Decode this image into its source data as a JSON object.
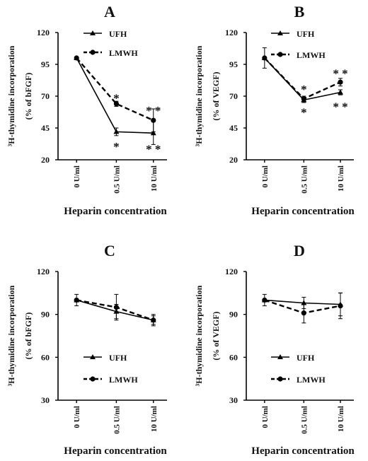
{
  "figure": {
    "x_axis_label": "Heparin concentration",
    "legend": {
      "ufh": "UFH",
      "lmwh": "LMWH"
    },
    "series_colors": {
      "ufh": "#000000",
      "lmwh": "#000000"
    }
  },
  "chart_data": [
    {
      "panel": "A",
      "type": "line",
      "categories": [
        "0 U/ml",
        "0.5 U/ml",
        "10 U/ml"
      ],
      "yticks": [
        20,
        45,
        70,
        95,
        120
      ],
      "ylim": [
        20,
        120
      ],
      "ylabel_line1": "³H-thymidine incorporation",
      "ylabel_line2": "(% of bFGF)",
      "xlabel": "Heparin concentration",
      "legend_placement": "top-right",
      "grid": false,
      "series": [
        {
          "name": "UFH",
          "style": "solid",
          "marker": "triangle",
          "values": [
            100,
            42,
            41
          ],
          "errors": [
            0,
            3,
            9
          ]
        },
        {
          "name": "LMWH",
          "style": "dashed",
          "marker": "circle",
          "values": [
            100,
            64,
            51
          ],
          "errors": [
            0,
            2,
            9
          ]
        }
      ],
      "annotations": [
        {
          "text": "*",
          "x": 1,
          "y": 68.5
        },
        {
          "text": "* *",
          "x": 2,
          "y": 59
        },
        {
          "text": "*",
          "x": 1,
          "y": 30.5
        },
        {
          "text": "* *",
          "x": 2,
          "y": 28.5
        }
      ]
    },
    {
      "panel": "B",
      "type": "line",
      "categories": [
        "0 U/ml",
        "0.5 U/ml",
        "10 U/ml"
      ],
      "yticks": [
        20,
        45,
        70,
        95,
        120
      ],
      "ylim": [
        20,
        120
      ],
      "ylabel_line1": "³H-thymidine incorporation",
      "ylabel_line2": "(% of VEGF)",
      "xlabel": "Heparin concentration",
      "legend_placement": "top-right",
      "grid": false,
      "series": [
        {
          "name": "UFH",
          "style": "solid",
          "marker": "triangle",
          "values": [
            100,
            67,
            73
          ],
          "errors": [
            8,
            2,
            2
          ]
        },
        {
          "name": "LMWH",
          "style": "dashed",
          "marker": "circle",
          "values": [
            100,
            68,
            81
          ],
          "errors": [
            0,
            2,
            3
          ]
        }
      ],
      "annotations": [
        {
          "text": "*",
          "x": 1,
          "y": 75.5
        },
        {
          "text": "* *",
          "x": 2,
          "y": 88
        },
        {
          "text": "*",
          "x": 1,
          "y": 57.5
        },
        {
          "text": "* *",
          "x": 2,
          "y": 62
        }
      ]
    },
    {
      "panel": "C",
      "type": "line",
      "categories": [
        "0 U/ml",
        "0.5 U/ml",
        "10 U/ml"
      ],
      "yticks": [
        30,
        60,
        90,
        120
      ],
      "ylim": [
        30,
        120
      ],
      "ylabel_line1": "³H-thymidine incorporation",
      "ylabel_line2": "(% of bFGF)",
      "xlabel": "Heparin concentration",
      "legend_placement": "bottom-right",
      "grid": false,
      "series": [
        {
          "name": "UFH",
          "style": "solid",
          "marker": "triangle",
          "values": [
            100,
            92,
            86
          ],
          "errors": [
            4,
            5,
            4
          ]
        },
        {
          "name": "LMWH",
          "style": "dashed",
          "marker": "circle",
          "values": [
            100,
            95,
            86
          ],
          "errors": [
            0,
            9,
            3
          ]
        }
      ],
      "annotations": []
    },
    {
      "panel": "D",
      "type": "line",
      "categories": [
        "0 U/ml",
        "0.5 U/ml",
        "10 U/ml"
      ],
      "yticks": [
        30,
        60,
        90,
        120
      ],
      "ylim": [
        30,
        120
      ],
      "ylabel_line1": "³H-thymidine incorporation",
      "ylabel_line2": "(% of VEGF)",
      "xlabel": "Heparin concentration",
      "legend_placement": "bottom-right",
      "grid": false,
      "series": [
        {
          "name": "UFH",
          "style": "solid",
          "marker": "triangle",
          "values": [
            100,
            98,
            97
          ],
          "errors": [
            4,
            4,
            8
          ]
        },
        {
          "name": "LMWH",
          "style": "dashed",
          "marker": "circle",
          "values": [
            100,
            91,
            96
          ],
          "errors": [
            0,
            7,
            9
          ]
        }
      ],
      "annotations": []
    }
  ]
}
